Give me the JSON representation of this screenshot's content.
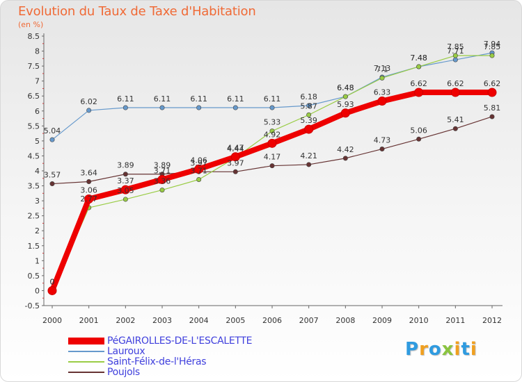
{
  "chart_data": {
    "type": "line",
    "title": "Evolution du Taux de Taxe d'Habitation",
    "ylabel": "(en %)",
    "xlabel": "",
    "x": [
      "2000",
      "2001",
      "2002",
      "2003",
      "2004",
      "2005",
      "2006",
      "2007",
      "2008",
      "2009",
      "2010",
      "2011",
      "2012"
    ],
    "ylim": [
      -0.5,
      8.5
    ],
    "yticks": [
      "-0.5",
      "0",
      "0.5",
      "1",
      "1.5",
      "2",
      "2.5",
      "3",
      "3.5",
      "4",
      "4.5",
      "5",
      "5.5",
      "6",
      "6.5",
      "7",
      "7.5",
      "8",
      "8.5"
    ],
    "ytick_values": [
      -0.5,
      0,
      0.5,
      1,
      1.5,
      2,
      2.5,
      3,
      3.5,
      4,
      4.5,
      5,
      5.5,
      6,
      6.5,
      7,
      7.5,
      8,
      8.5
    ],
    "series": [
      {
        "name": "PéGAIROLLES-DE-L'ESCALETTE",
        "color": "#ee0000",
        "values": [
          0,
          3.06,
          3.37,
          3.71,
          4.06,
          4.47,
          4.92,
          5.39,
          5.93,
          6.33,
          6.62,
          6.62,
          6.62
        ],
        "labels": [
          "0",
          "3.06",
          "3.37",
          "3.71",
          "4.06",
          "4.47",
          "4.92",
          "5.39",
          "5.93",
          "6.33",
          "6.62",
          "6.62",
          "6.62"
        ]
      },
      {
        "name": "Lauroux",
        "color": "#6699cc",
        "values": [
          5.04,
          6.02,
          6.11,
          6.11,
          6.11,
          6.11,
          6.11,
          6.18,
          6.48,
          7.13,
          7.48,
          7.71,
          7.94
        ],
        "labels": [
          "5.04",
          "6.02",
          "6.11",
          "6.11",
          "6.11",
          "6.11",
          "6.11",
          "6.18",
          "6.48",
          "7.13",
          "7.48",
          "7.71",
          "7.94"
        ]
      },
      {
        "name": "Saint-Félix-de-l'Héras",
        "color": "#99cc44",
        "values": [
          0,
          2.77,
          3.05,
          3.36,
          3.71,
          4.44,
          5.33,
          5.87,
          6.48,
          7.1,
          7.48,
          7.85,
          7.85
        ],
        "labels": [
          "0",
          "2.77",
          "3.05",
          "3.36",
          "3.71",
          "4.44",
          "5.33",
          "5.87",
          "6.48",
          "7.1",
          "7.48",
          "7.85",
          "7.85"
        ]
      },
      {
        "name": "Poujols",
        "color": "#663333",
        "values": [
          3.57,
          3.64,
          3.89,
          3.89,
          3.97,
          3.97,
          4.17,
          4.21,
          4.42,
          4.73,
          5.06,
          5.41,
          5.81
        ],
        "labels": [
          "3.57",
          "3.64",
          "3.89",
          "3.89",
          "3.97",
          "3.97",
          "4.17",
          "4.21",
          "4.42",
          "4.73",
          "5.06",
          "5.41",
          "5.81"
        ]
      }
    ],
    "grid": false,
    "legend_position": "bottom-left"
  },
  "logo": {
    "letters": [
      "P",
      "r",
      "o",
      "x",
      "i",
      "t",
      "i"
    ],
    "colors": [
      "#2f9be0",
      "#f0a020",
      "#2f9be0",
      "#8ac43f",
      "#f0a020",
      "#2f9be0",
      "#f0a020"
    ]
  }
}
